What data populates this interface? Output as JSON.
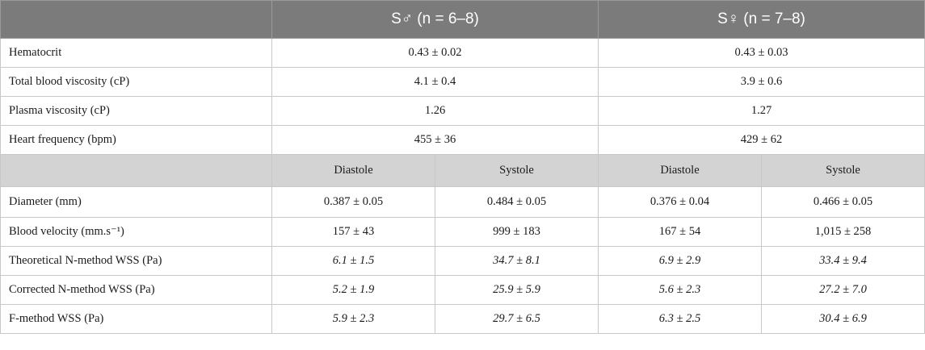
{
  "groups": [
    {
      "label": "S♂ (n = 6–8)"
    },
    {
      "label": "S♀ (n = 7–8)"
    }
  ],
  "common_rows": [
    {
      "label": "Hematocrit",
      "male": "0.43 ± 0.02",
      "female": "0.43 ± 0.03"
    },
    {
      "label": "Total blood viscosity (cP)",
      "male": "4.1 ± 0.4",
      "female": "3.9 ± 0.6"
    },
    {
      "label": "Plasma viscosity (cP)",
      "male": "1.26",
      "female": "1.27"
    },
    {
      "label": "Heart frequency (bpm)",
      "male": "455 ± 36",
      "female": "429 ± 62"
    }
  ],
  "phase_headers": [
    "Diastole",
    "Systole",
    "Diastole",
    "Systole"
  ],
  "phase_rows": [
    {
      "label": "Diameter (mm)",
      "values": [
        "0.387 ± 0.05",
        "0.484 ± 0.05",
        "0.376 ± 0.04",
        "0.466 ± 0.05"
      ]
    },
    {
      "label": "Blood velocity (mm.s⁻¹)",
      "values": [
        "157 ± 43",
        "999 ± 183",
        "167 ± 54",
        "1,015 ± 258"
      ]
    },
    {
      "label": "Theoretical N-method WSS (Pa)",
      "values": [
        "6.1 ± 1.5",
        "34.7 ± 8.1",
        "6.9 ± 2.9",
        "33.4 ± 9.4"
      ]
    },
    {
      "label": "Corrected N-method WSS (Pa)",
      "values": [
        "5.2 ± 1.9",
        "25.9 ± 5.9",
        "5.6 ± 2.3",
        "27.2 ± 7.0"
      ]
    },
    {
      "label": "F-method WSS (Pa)",
      "values": [
        "5.9 ± 2.3",
        "29.7 ± 6.5",
        "6.3 ± 2.5",
        "30.4 ± 6.9"
      ]
    }
  ]
}
